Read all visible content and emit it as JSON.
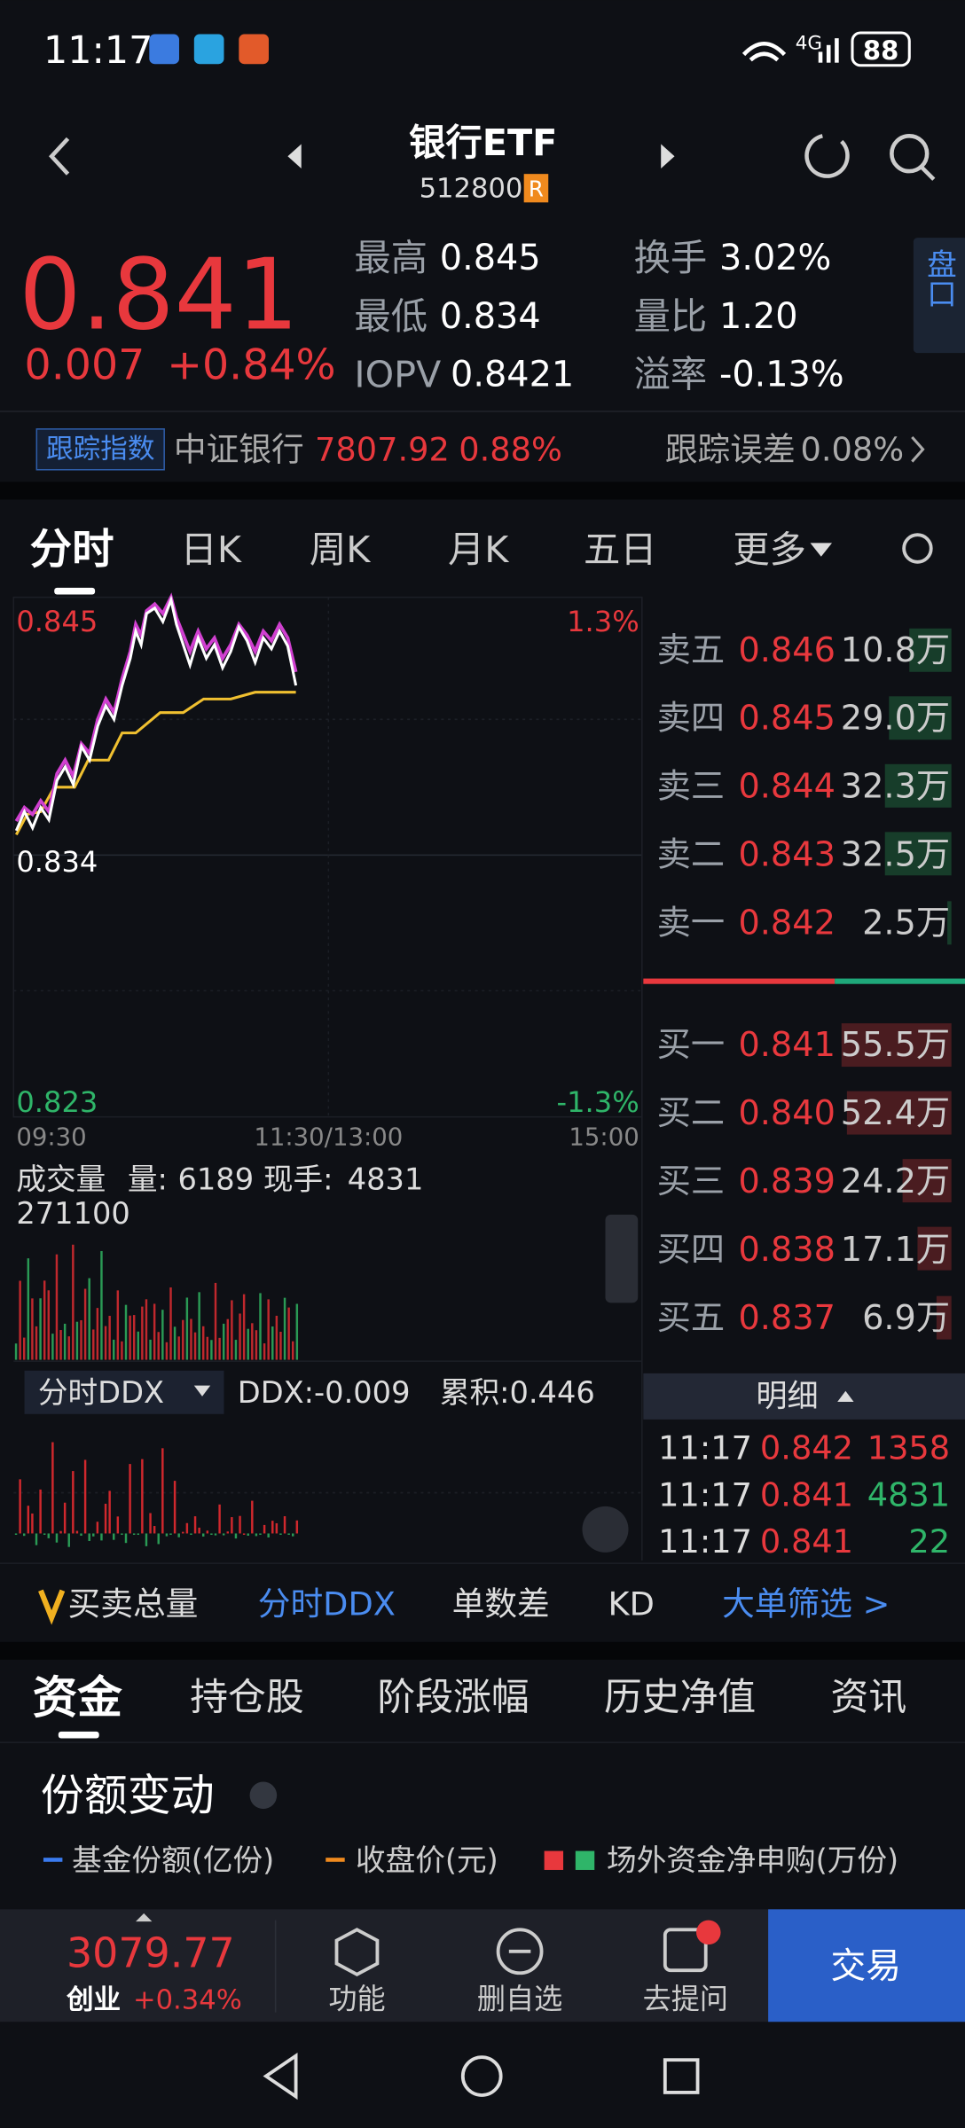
{
  "status": {
    "time": "11:17",
    "network": "4G",
    "battery": "88"
  },
  "header": {
    "title": "银行ETF",
    "code": "512800",
    "badge": "R"
  },
  "quote": {
    "price": "0.841",
    "change": "0.007",
    "pct": "+0.84%",
    "stats": [
      {
        "label": "最高",
        "value": "0.845"
      },
      {
        "label": "最低",
        "value": "0.834"
      },
      {
        "label": "IOPV",
        "value": "0.8421"
      },
      {
        "label": "换手",
        "value": "3.02%"
      },
      {
        "label": "量比",
        "value": "1.20"
      },
      {
        "label": "溢率",
        "value": "-0.13%"
      }
    ],
    "side": "盘口"
  },
  "track": {
    "tag": "跟踪指数",
    "name": "中证银行",
    "value": "7807.92",
    "pct": "0.88%",
    "error_label": "跟踪误差",
    "error": "0.08%"
  },
  "tabs": [
    "分时",
    "日K",
    "周K",
    "月K",
    "五日",
    "更多"
  ],
  "chart": {
    "top_left": "0.845",
    "top_right": "1.3%",
    "mid_left": "0.834",
    "bottom_left": "0.823",
    "bottom_right": "-1.3%",
    "times": [
      "09:30",
      "11:30/13:00",
      "15:00"
    ]
  },
  "volume": {
    "title": "成交量",
    "vol_label": "量:",
    "vol": "6189",
    "hand_label": "现手:",
    "hand": "4831",
    "max": "271100"
  },
  "ddx": {
    "selector": "分时DDX",
    "ddx": "DDX:-0.009",
    "cum": "累积:0.446"
  },
  "orderbook": {
    "asks": [
      {
        "label": "卖五",
        "price": "0.846",
        "vol": "10.8万"
      },
      {
        "label": "卖四",
        "price": "0.845",
        "vol": "29.0万"
      },
      {
        "label": "卖三",
        "price": "0.844",
        "vol": "32.3万"
      },
      {
        "label": "卖二",
        "price": "0.843",
        "vol": "32.5万"
      },
      {
        "label": "卖一",
        "price": "0.842",
        "vol": "2.5万"
      }
    ],
    "bids": [
      {
        "label": "买一",
        "price": "0.841",
        "vol": "55.5万"
      },
      {
        "label": "买二",
        "price": "0.840",
        "vol": "52.4万"
      },
      {
        "label": "买三",
        "price": "0.839",
        "vol": "24.2万"
      },
      {
        "label": "买四",
        "price": "0.838",
        "vol": "17.1万"
      },
      {
        "label": "买五",
        "price": "0.837",
        "vol": "6.9万"
      }
    ]
  },
  "detail": {
    "title": "明细",
    "trades": [
      [
        "11:17",
        "0.842",
        "1358"
      ],
      [
        "11:17",
        "0.841",
        "4831"
      ],
      [
        "11:17",
        "0.841",
        "22"
      ]
    ]
  },
  "indicators": [
    "买卖总量",
    "分时DDX",
    "单数差",
    "KD",
    "大单筛选 >"
  ],
  "sections": [
    "资金",
    "持仓股",
    "阶段涨幅",
    "历史净值",
    "资讯"
  ],
  "fund": {
    "title": "份额变动",
    "legends": [
      "基金份额(亿份)",
      "收盘价(元)",
      "场外资金净申购(万份)"
    ]
  },
  "bottom": {
    "index": "3079.77",
    "name": "创业",
    "pct": "+0.34%",
    "buttons": [
      "功能",
      "删自选",
      "去提问"
    ],
    "trade": "交易"
  }
}
